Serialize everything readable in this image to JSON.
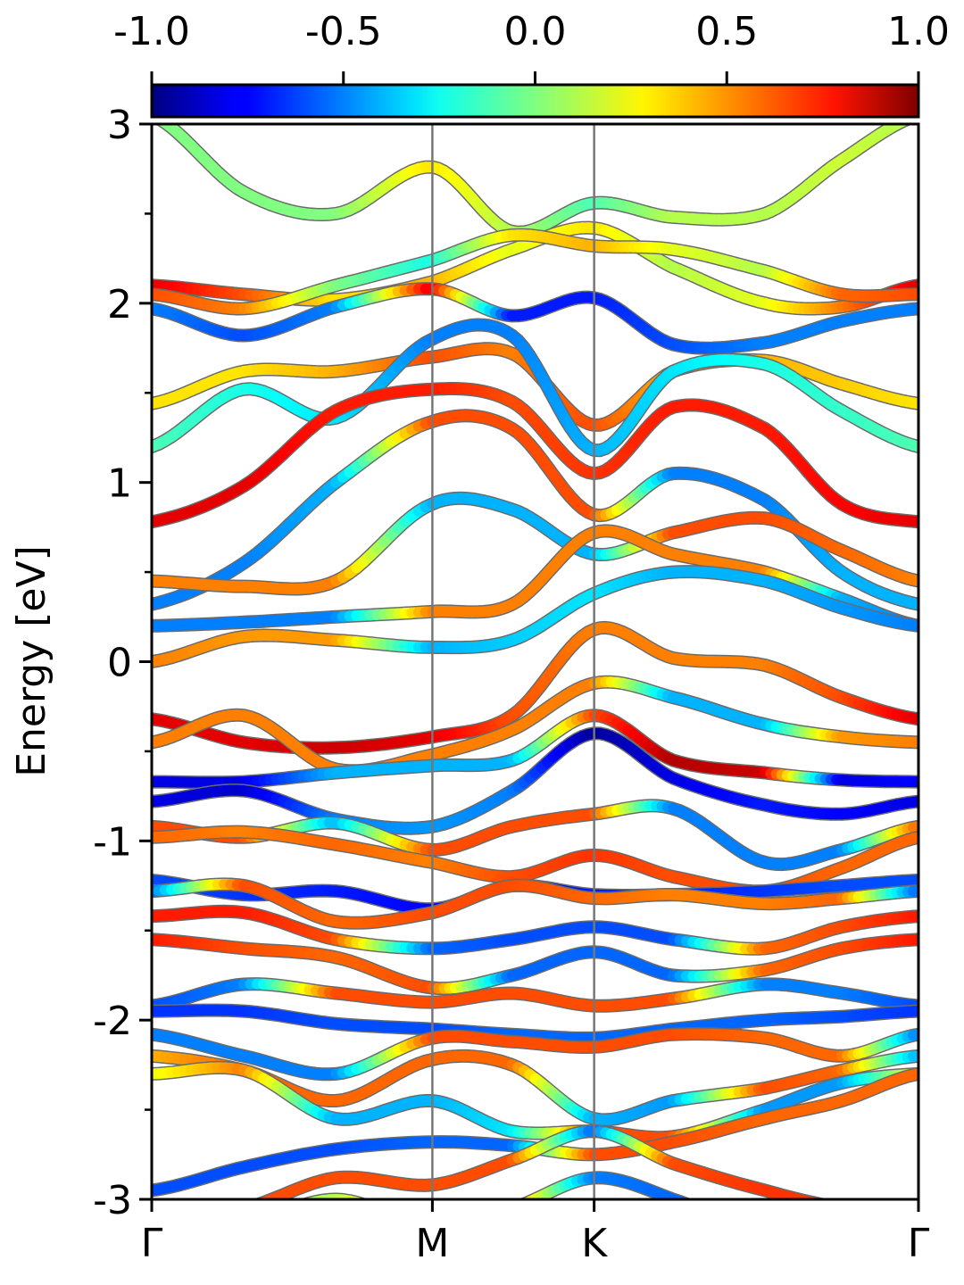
{
  "chart_data": {
    "type": "line",
    "ylabel": "Energy [eV]",
    "ylim": [
      -3,
      3
    ],
    "y_ticks": [
      "3",
      "2",
      "1",
      "0",
      "-1",
      "-2",
      "-3"
    ],
    "y_tick_values": [
      3,
      2,
      1,
      0,
      -1,
      -2,
      -3
    ],
    "y_minor_tick_values": [
      2.5,
      1.5,
      0.5,
      -0.5,
      -1.5,
      -2.5
    ],
    "x_ticks": [
      "Γ",
      "M",
      "K",
      "Γ"
    ],
    "x_tick_values": [
      0,
      0.366,
      0.577,
      1.0
    ],
    "xlim": [
      0,
      1
    ],
    "grid": false,
    "colorbar": {
      "labels": [
        "-1.0",
        "-0.5",
        "0.0",
        "0.5",
        "1.0"
      ],
      "values": [
        -1,
        -0.5,
        0,
        0.5,
        1
      ],
      "range": [
        -1,
        1
      ],
      "colormap": "jet",
      "placement": "top"
    },
    "x_nodes": [
      0,
      0.12,
      0.24,
      0.366,
      0.47,
      0.577,
      0.68,
      0.8,
      0.9,
      1.0
    ],
    "series": [
      {
        "energies": [
          3.05,
          2.62,
          2.5,
          2.76,
          2.4,
          2.56,
          2.48,
          2.5,
          2.8,
          3.05
        ],
        "weights": [
          0.0,
          0.0,
          0.0,
          0.3,
          0.1,
          -0.1,
          0.1,
          0.1,
          0.15,
          0.1
        ]
      },
      {
        "energies": [
          2.1,
          2.05,
          2.02,
          2.12,
          2.3,
          2.42,
          2.2,
          2.0,
          1.98,
          2.1
        ],
        "weights": [
          0.8,
          0.6,
          0.3,
          0.4,
          0.2,
          0.3,
          0.1,
          0.2,
          0.5,
          0.8
        ]
      },
      {
        "energies": [
          2.05,
          1.97,
          2.1,
          2.24,
          2.38,
          2.32,
          2.3,
          2.18,
          2.05,
          2.05
        ],
        "weights": [
          0.6,
          0.5,
          0.0,
          -0.2,
          0.3,
          0.4,
          0.2,
          0.1,
          0.55,
          0.6
        ]
      },
      {
        "energies": [
          1.97,
          1.82,
          1.98,
          2.08,
          1.93,
          2.03,
          1.77,
          1.78,
          1.9,
          1.97
        ],
        "weights": [
          -0.5,
          -0.6,
          -0.5,
          0.8,
          -0.7,
          -0.7,
          -0.6,
          -0.5,
          -0.5,
          -0.5
        ]
      },
      {
        "energies": [
          1.44,
          1.62,
          1.62,
          1.7,
          1.72,
          1.32,
          1.62,
          1.68,
          1.55,
          1.44
        ],
        "weights": [
          0.3,
          0.3,
          0.4,
          0.6,
          0.5,
          0.6,
          0.4,
          0.4,
          0.35,
          0.3
        ]
      },
      {
        "energies": [
          1.2,
          1.52,
          1.36,
          1.8,
          1.82,
          1.18,
          1.62,
          1.66,
          1.4,
          1.2
        ],
        "weights": [
          -0.1,
          -0.2,
          -0.3,
          -0.5,
          -0.5,
          -0.4,
          -0.3,
          -0.2,
          -0.15,
          -0.1
        ]
      },
      {
        "energies": [
          0.78,
          0.98,
          1.4,
          1.52,
          1.45,
          1.05,
          1.42,
          1.3,
          0.88,
          0.78
        ],
        "weights": [
          0.8,
          0.8,
          0.7,
          0.7,
          0.6,
          0.65,
          0.7,
          0.7,
          0.75,
          0.8
        ]
      },
      {
        "energies": [
          0.32,
          0.55,
          1.0,
          1.34,
          1.3,
          0.82,
          1.05,
          0.9,
          0.5,
          0.32
        ],
        "weights": [
          -0.5,
          -0.5,
          -0.4,
          0.6,
          0.6,
          0.6,
          -0.5,
          -0.5,
          -0.4,
          -0.4
        ]
      },
      {
        "energies": [
          0.45,
          0.42,
          0.45,
          0.88,
          0.85,
          0.6,
          0.72,
          0.8,
          0.62,
          0.45
        ],
        "weights": [
          0.5,
          0.5,
          0.5,
          -0.4,
          -0.4,
          -0.4,
          0.6,
          0.6,
          0.55,
          0.5
        ]
      },
      {
        "energies": [
          0.2,
          0.22,
          0.25,
          0.28,
          0.32,
          0.72,
          0.6,
          0.5,
          0.35,
          0.2
        ],
        "weights": [
          -0.5,
          -0.5,
          -0.5,
          0.5,
          0.5,
          0.5,
          0.5,
          0.5,
          -0.4,
          -0.5
        ]
      },
      {
        "energies": [
          0.0,
          0.14,
          0.12,
          0.08,
          0.12,
          0.38,
          0.5,
          0.45,
          0.3,
          0.2
        ],
        "weights": [
          0.5,
          0.45,
          0.45,
          -0.4,
          -0.35,
          -0.3,
          -0.4,
          -0.4,
          -0.45,
          -0.5
        ]
      },
      {
        "energies": [
          -0.32,
          -0.45,
          -0.48,
          -0.42,
          -0.3,
          0.18,
          0.02,
          -0.02,
          -0.2,
          -0.32
        ],
        "weights": [
          0.8,
          0.8,
          0.85,
          0.8,
          0.6,
          0.5,
          0.5,
          0.5,
          0.6,
          0.8
        ]
      },
      {
        "energies": [
          -0.45,
          -0.3,
          -0.6,
          -0.52,
          -0.38,
          -0.12,
          -0.2,
          -0.35,
          -0.42,
          -0.45
        ],
        "weights": [
          0.5,
          0.5,
          0.5,
          0.5,
          0.5,
          0.5,
          -0.4,
          -0.4,
          0.45,
          0.5
        ]
      },
      {
        "energies": [
          -0.67,
          -0.67,
          -0.62,
          -0.58,
          -0.55,
          -0.3,
          -0.55,
          -0.62,
          -0.66,
          -0.67
        ],
        "weights": [
          -0.8,
          -0.8,
          -0.4,
          -0.4,
          -0.4,
          0.6,
          0.9,
          0.85,
          -0.8,
          -0.75
        ]
      },
      {
        "energies": [
          -0.78,
          -0.72,
          -0.88,
          -0.92,
          -0.72,
          -0.4,
          -0.65,
          -0.8,
          -0.85,
          -0.78
        ],
        "weights": [
          -0.8,
          -0.85,
          -0.5,
          -0.45,
          -0.5,
          -0.95,
          -0.8,
          -0.7,
          -0.75,
          -0.8
        ]
      },
      {
        "energies": [
          -0.92,
          -0.98,
          -0.9,
          -1.05,
          -0.92,
          -0.85,
          -0.82,
          -1.12,
          -1.05,
          -0.92
        ],
        "weights": [
          0.6,
          0.6,
          -0.4,
          0.6,
          0.6,
          0.6,
          -0.5,
          -0.5,
          -0.5,
          0.55
        ]
      },
      {
        "energies": [
          -0.98,
          -0.95,
          -1.02,
          -1.12,
          -1.2,
          -1.08,
          -1.2,
          -1.28,
          -1.15,
          -0.98
        ],
        "weights": [
          0.55,
          0.5,
          0.55,
          0.5,
          0.6,
          0.65,
          0.6,
          0.6,
          0.55,
          0.55
        ]
      },
      {
        "energies": [
          -1.22,
          -1.3,
          -1.28,
          -1.38,
          -1.25,
          -1.3,
          -1.3,
          -1.28,
          -1.25,
          -1.22
        ],
        "weights": [
          -0.6,
          -0.65,
          -0.7,
          -0.75,
          -0.75,
          -0.7,
          -0.7,
          -0.65,
          -0.6,
          -0.6
        ]
      },
      {
        "energies": [
          -1.28,
          -1.25,
          -1.45,
          -1.4,
          -1.25,
          -1.32,
          -1.3,
          -1.35,
          -1.32,
          -1.28
        ],
        "weights": [
          -0.55,
          0.6,
          0.55,
          0.6,
          0.6,
          0.55,
          0.5,
          0.5,
          0.55,
          -0.55
        ]
      },
      {
        "energies": [
          -1.42,
          -1.4,
          -1.55,
          -1.6,
          -1.55,
          -1.48,
          -1.55,
          -1.6,
          -1.48,
          -1.42
        ],
        "weights": [
          0.7,
          0.7,
          0.6,
          -0.55,
          -0.6,
          -0.6,
          -0.6,
          0.55,
          0.6,
          0.7
        ]
      },
      {
        "energies": [
          -1.55,
          -1.6,
          -1.65,
          -1.82,
          -1.75,
          -1.62,
          -1.75,
          -1.72,
          -1.6,
          -1.55
        ],
        "weights": [
          0.7,
          0.6,
          0.55,
          0.6,
          -0.55,
          -0.55,
          -0.55,
          0.55,
          0.6,
          0.7
        ]
      },
      {
        "energies": [
          -1.92,
          -1.8,
          -1.85,
          -1.9,
          -1.85,
          -1.92,
          -1.88,
          -1.8,
          -1.85,
          -1.92
        ],
        "weights": [
          -0.6,
          -0.5,
          0.6,
          0.6,
          0.6,
          0.6,
          0.6,
          -0.5,
          -0.5,
          -0.6
        ]
      },
      {
        "energies": [
          -1.95,
          -1.95,
          -2.02,
          -2.05,
          -2.08,
          -2.1,
          -2.05,
          -2.0,
          -1.98,
          -1.95
        ],
        "weights": [
          -0.65,
          -0.65,
          -0.6,
          -0.6,
          -0.55,
          -0.55,
          -0.55,
          -0.55,
          -0.6,
          -0.65
        ]
      },
      {
        "energies": [
          -2.08,
          -2.2,
          -2.3,
          -2.1,
          -2.12,
          -2.15,
          -2.08,
          -2.1,
          -2.2,
          -2.08
        ],
        "weights": [
          -0.5,
          -0.5,
          -0.5,
          0.6,
          0.6,
          0.6,
          0.6,
          0.55,
          0.55,
          -0.5
        ]
      },
      {
        "energies": [
          -2.2,
          -2.28,
          -2.45,
          -2.22,
          -2.25,
          -2.55,
          -2.45,
          -2.38,
          -2.28,
          -2.2
        ],
        "weights": [
          0.4,
          0.55,
          0.55,
          0.55,
          0.55,
          -0.4,
          -0.45,
          0.6,
          0.55,
          -0.4
        ]
      },
      {
        "energies": [
          -2.3,
          -2.28,
          -2.55,
          -2.45,
          -2.62,
          -2.62,
          -2.65,
          -2.5,
          -2.35,
          -2.3
        ],
        "weights": [
          0.2,
          0.5,
          -0.4,
          -0.4,
          -0.3,
          0.6,
          0.6,
          -0.45,
          -0.45,
          0.25
        ]
      },
      {
        "energies": [
          -2.95,
          -2.82,
          -2.72,
          -2.68,
          -2.7,
          -2.75,
          -2.68,
          -2.55,
          -2.45,
          -2.3
        ],
        "weights": [
          -0.6,
          -0.6,
          -0.6,
          -0.55,
          -0.55,
          0.6,
          0.6,
          0.55,
          0.55,
          0.55
        ]
      },
      {
        "energies": [
          -3.1,
          -3.05,
          -2.88,
          -2.92,
          -2.78,
          -2.62,
          -2.8,
          -2.95,
          -3.05,
          -3.1
        ],
        "weights": [
          0.6,
          0.6,
          0.6,
          0.6,
          0.6,
          -0.55,
          0.6,
          0.65,
          0.65,
          0.65
        ]
      },
      {
        "energies": [
          -3.3,
          -3.15,
          -3.0,
          -3.15,
          -3.05,
          -2.88,
          -3.0,
          -3.2,
          -3.3,
          -3.35
        ],
        "weights": [
          0.0,
          0.0,
          0.1,
          0.55,
          0.55,
          -0.5,
          -0.55,
          -0.55,
          0.6,
          0.6
        ]
      }
    ]
  }
}
